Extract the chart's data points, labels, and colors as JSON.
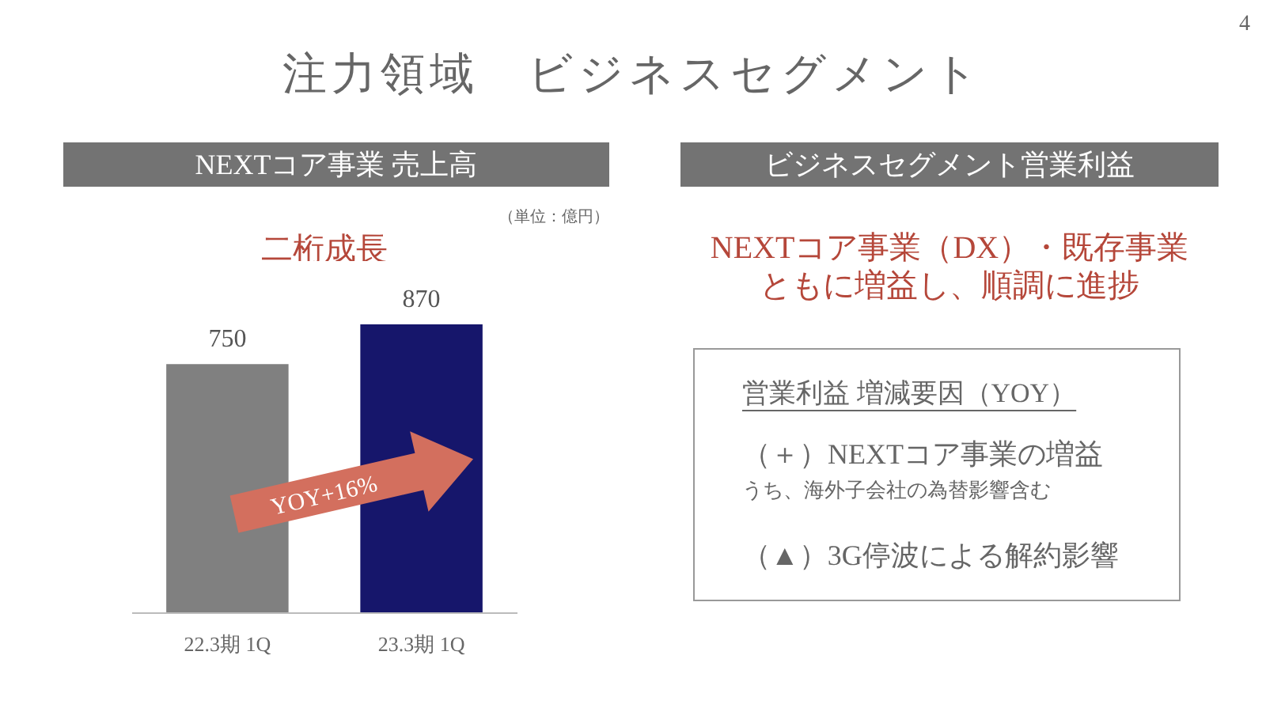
{
  "chart_data": [
    {
      "type": "bar",
      "title": "NEXTコア事業 売上高",
      "categories": [
        "22.3期 1Q",
        "23.3期 1Q"
      ],
      "values": [
        750,
        870
      ],
      "colors": [
        "#808080",
        "#16166b"
      ],
      "data_labels": true,
      "annotations": [
        "注力領域　ビジネスセグメント",
        "4",
        "（単位：億円）",
        "二桁成長",
        "YOY+16%"
      ]
    },
    {
      "type": "other",
      "title": "ビジネスセグメント営業利益",
      "subtitle": "NEXTコア事業（DX）・既存事業ともに増益し、順調に進捗",
      "annotations": [
        "営業利益 増減要因（YOY）",
        "（＋）NEXTコア事業の増益",
        "うち、海外子会社の為替影響含む",
        "（▲）3G停波による解約影響"
      ]
    }
  ]
}
